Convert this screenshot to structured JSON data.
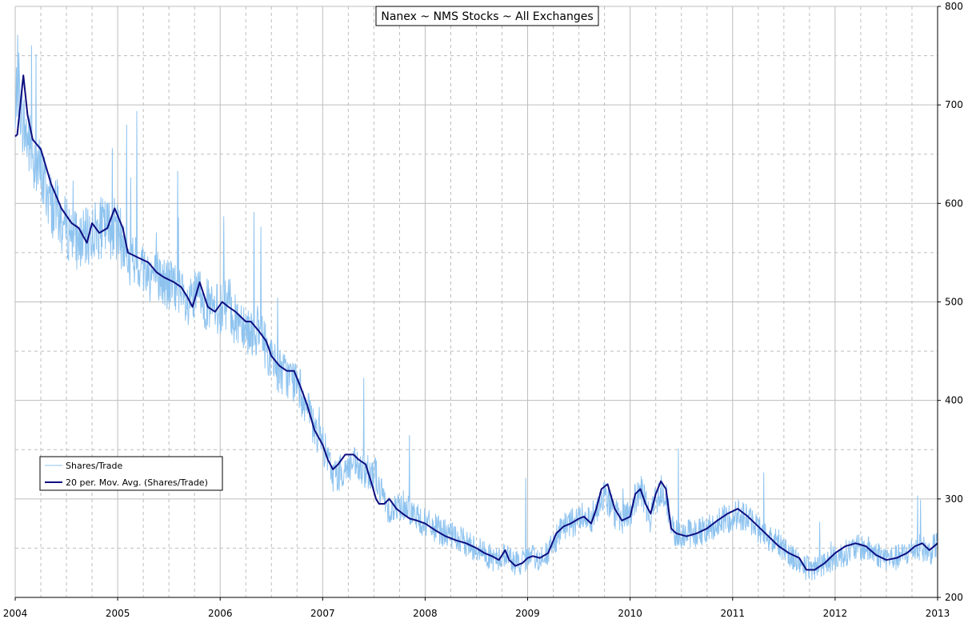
{
  "chart_data": {
    "type": "line",
    "title": "Nanex ~ NMS Stocks ~ All Exchanges",
    "xlabel": "",
    "ylabel": "",
    "xlim": [
      2004.0,
      2013.0
    ],
    "ylim": [
      200,
      800
    ],
    "x_ticks": [
      "2004",
      "2005",
      "2006",
      "2007",
      "2008",
      "2009",
      "2010",
      "2011",
      "2012",
      "2013"
    ],
    "y_ticks": [
      "200",
      "300",
      "400",
      "500",
      "600",
      "700",
      "800"
    ],
    "grid": true,
    "y_axis_side": "right",
    "legend_position": "bottom-left",
    "series": [
      {
        "name": "Shares/Trade",
        "color": "#8ec3ef",
        "width": 1,
        "style": "daily",
        "x": [
          2004.0,
          2004.02,
          2004.05,
          2004.08,
          2004.12,
          2004.17,
          2004.25,
          2004.35,
          2004.45,
          2004.55,
          2004.62,
          2004.7,
          2004.75,
          2004.82,
          2004.9,
          2004.97,
          2005.05,
          2005.1,
          2005.2,
          2005.3,
          2005.38,
          2005.45,
          2005.55,
          2005.62,
          2005.68,
          2005.73,
          2005.8,
          2005.88,
          2005.95,
          2006.02,
          2006.08,
          2006.15,
          2006.2,
          2006.25,
          2006.3,
          2006.38,
          2006.45,
          2006.5,
          2006.58,
          2006.65,
          2006.72,
          2006.78,
          2006.85,
          2006.92,
          2007.0,
          2007.05,
          2007.1,
          2007.15,
          2007.22,
          2007.3,
          2007.35,
          2007.42,
          2007.48,
          2007.52,
          2007.55,
          2007.6,
          2007.65,
          2007.72,
          2007.78,
          2007.85,
          2007.92,
          2008.0,
          2008.1,
          2008.2,
          2008.3,
          2008.4,
          2008.5,
          2008.58,
          2008.65,
          2008.72,
          2008.78,
          2008.82,
          2008.88,
          2008.95,
          2009.0,
          2009.05,
          2009.12,
          2009.2,
          2009.28,
          2009.35,
          2009.42,
          2009.5,
          2009.55,
          2009.62,
          2009.67,
          2009.72,
          2009.78,
          2009.85,
          2009.92,
          2010.0,
          2010.05,
          2010.1,
          2010.15,
          2010.2,
          2010.25,
          2010.3,
          2010.35,
          2010.4,
          2010.45,
          2010.55,
          2010.65,
          2010.75,
          2010.85,
          2010.95,
          2011.05,
          2011.15,
          2011.25,
          2011.35,
          2011.45,
          2011.55,
          2011.65,
          2011.72,
          2011.8,
          2011.9,
          2012.0,
          2012.1,
          2012.2,
          2012.3,
          2012.4,
          2012.5,
          2012.6,
          2012.7,
          2012.78,
          2012.85,
          2012.92,
          2013.0
        ],
        "y": [
          670,
          735,
          705,
          680,
          665,
          650,
          630,
          600,
          580,
          570,
          560,
          565,
          570,
          575,
          575,
          575,
          560,
          540,
          540,
          530,
          525,
          520,
          515,
          505,
          490,
          500,
          510,
          495,
          490,
          495,
          500,
          480,
          485,
          475,
          470,
          470,
          455,
          440,
          430,
          425,
          420,
          410,
          390,
          370,
          355,
          340,
          325,
          325,
          330,
          335,
          330,
          325,
          330,
          325,
          310,
          300,
          290,
          290,
          295,
          290,
          280,
          275,
          270,
          265,
          260,
          255,
          250,
          245,
          240,
          238,
          245,
          240,
          235,
          235,
          240,
          240,
          240,
          245,
          260,
          270,
          275,
          280,
          285,
          280,
          290,
          305,
          300,
          285,
          280,
          285,
          300,
          310,
          295,
          280,
          300,
          310,
          305,
          270,
          265,
          265,
          265,
          270,
          275,
          280,
          285,
          280,
          270,
          260,
          255,
          245,
          235,
          230,
          230,
          235,
          240,
          245,
          250,
          250,
          245,
          240,
          240,
          245,
          250,
          250,
          245,
          255
        ]
      },
      {
        "name": "20 per. Mov. Avg. (Shares/Trade)",
        "color": "#0d0d80",
        "width": 2,
        "style": "line",
        "x": [
          2004.0,
          2004.02,
          2004.05,
          2004.08,
          2004.12,
          2004.17,
          2004.25,
          2004.35,
          2004.45,
          2004.55,
          2004.62,
          2004.7,
          2004.75,
          2004.82,
          2004.9,
          2004.97,
          2005.05,
          2005.1,
          2005.2,
          2005.3,
          2005.38,
          2005.45,
          2005.55,
          2005.62,
          2005.68,
          2005.73,
          2005.8,
          2005.88,
          2005.95,
          2006.02,
          2006.08,
          2006.15,
          2006.2,
          2006.25,
          2006.3,
          2006.38,
          2006.45,
          2006.5,
          2006.58,
          2006.65,
          2006.72,
          2006.78,
          2006.85,
          2006.92,
          2007.0,
          2007.05,
          2007.1,
          2007.15,
          2007.22,
          2007.3,
          2007.35,
          2007.42,
          2007.48,
          2007.52,
          2007.55,
          2007.6,
          2007.65,
          2007.72,
          2007.78,
          2007.85,
          2007.92,
          2008.0,
          2008.1,
          2008.2,
          2008.3,
          2008.4,
          2008.5,
          2008.58,
          2008.65,
          2008.72,
          2008.78,
          2008.82,
          2008.88,
          2008.95,
          2009.0,
          2009.05,
          2009.12,
          2009.2,
          2009.28,
          2009.35,
          2009.42,
          2009.5,
          2009.55,
          2009.62,
          2009.67,
          2009.72,
          2009.78,
          2009.85,
          2009.92,
          2010.0,
          2010.05,
          2010.1,
          2010.15,
          2010.2,
          2010.25,
          2010.3,
          2010.35,
          2010.4,
          2010.45,
          2010.55,
          2010.65,
          2010.75,
          2010.85,
          2010.95,
          2011.05,
          2011.15,
          2011.25,
          2011.35,
          2011.45,
          2011.55,
          2011.65,
          2011.72,
          2011.8,
          2011.9,
          2012.0,
          2012.1,
          2012.2,
          2012.3,
          2012.4,
          2012.5,
          2012.6,
          2012.7,
          2012.78,
          2012.85,
          2012.92,
          2013.0
        ],
        "y": [
          668,
          670,
          700,
          730,
          690,
          665,
          655,
          620,
          595,
          580,
          575,
          560,
          580,
          570,
          575,
          595,
          575,
          550,
          545,
          540,
          530,
          525,
          520,
          515,
          505,
          495,
          520,
          495,
          490,
          500,
          495,
          490,
          485,
          480,
          480,
          470,
          460,
          445,
          435,
          430,
          430,
          415,
          395,
          370,
          355,
          340,
          330,
          335,
          345,
          345,
          340,
          335,
          315,
          300,
          295,
          295,
          300,
          290,
          285,
          280,
          278,
          275,
          268,
          262,
          258,
          255,
          250,
          245,
          242,
          238,
          248,
          238,
          232,
          235,
          240,
          242,
          240,
          245,
          265,
          272,
          275,
          280,
          282,
          275,
          290,
          310,
          315,
          290,
          278,
          282,
          305,
          310,
          295,
          285,
          305,
          318,
          310,
          270,
          265,
          262,
          265,
          270,
          278,
          285,
          290,
          282,
          272,
          262,
          252,
          245,
          240,
          228,
          228,
          235,
          245,
          252,
          255,
          252,
          243,
          238,
          240,
          245,
          252,
          255,
          248,
          255
        ]
      }
    ]
  }
}
